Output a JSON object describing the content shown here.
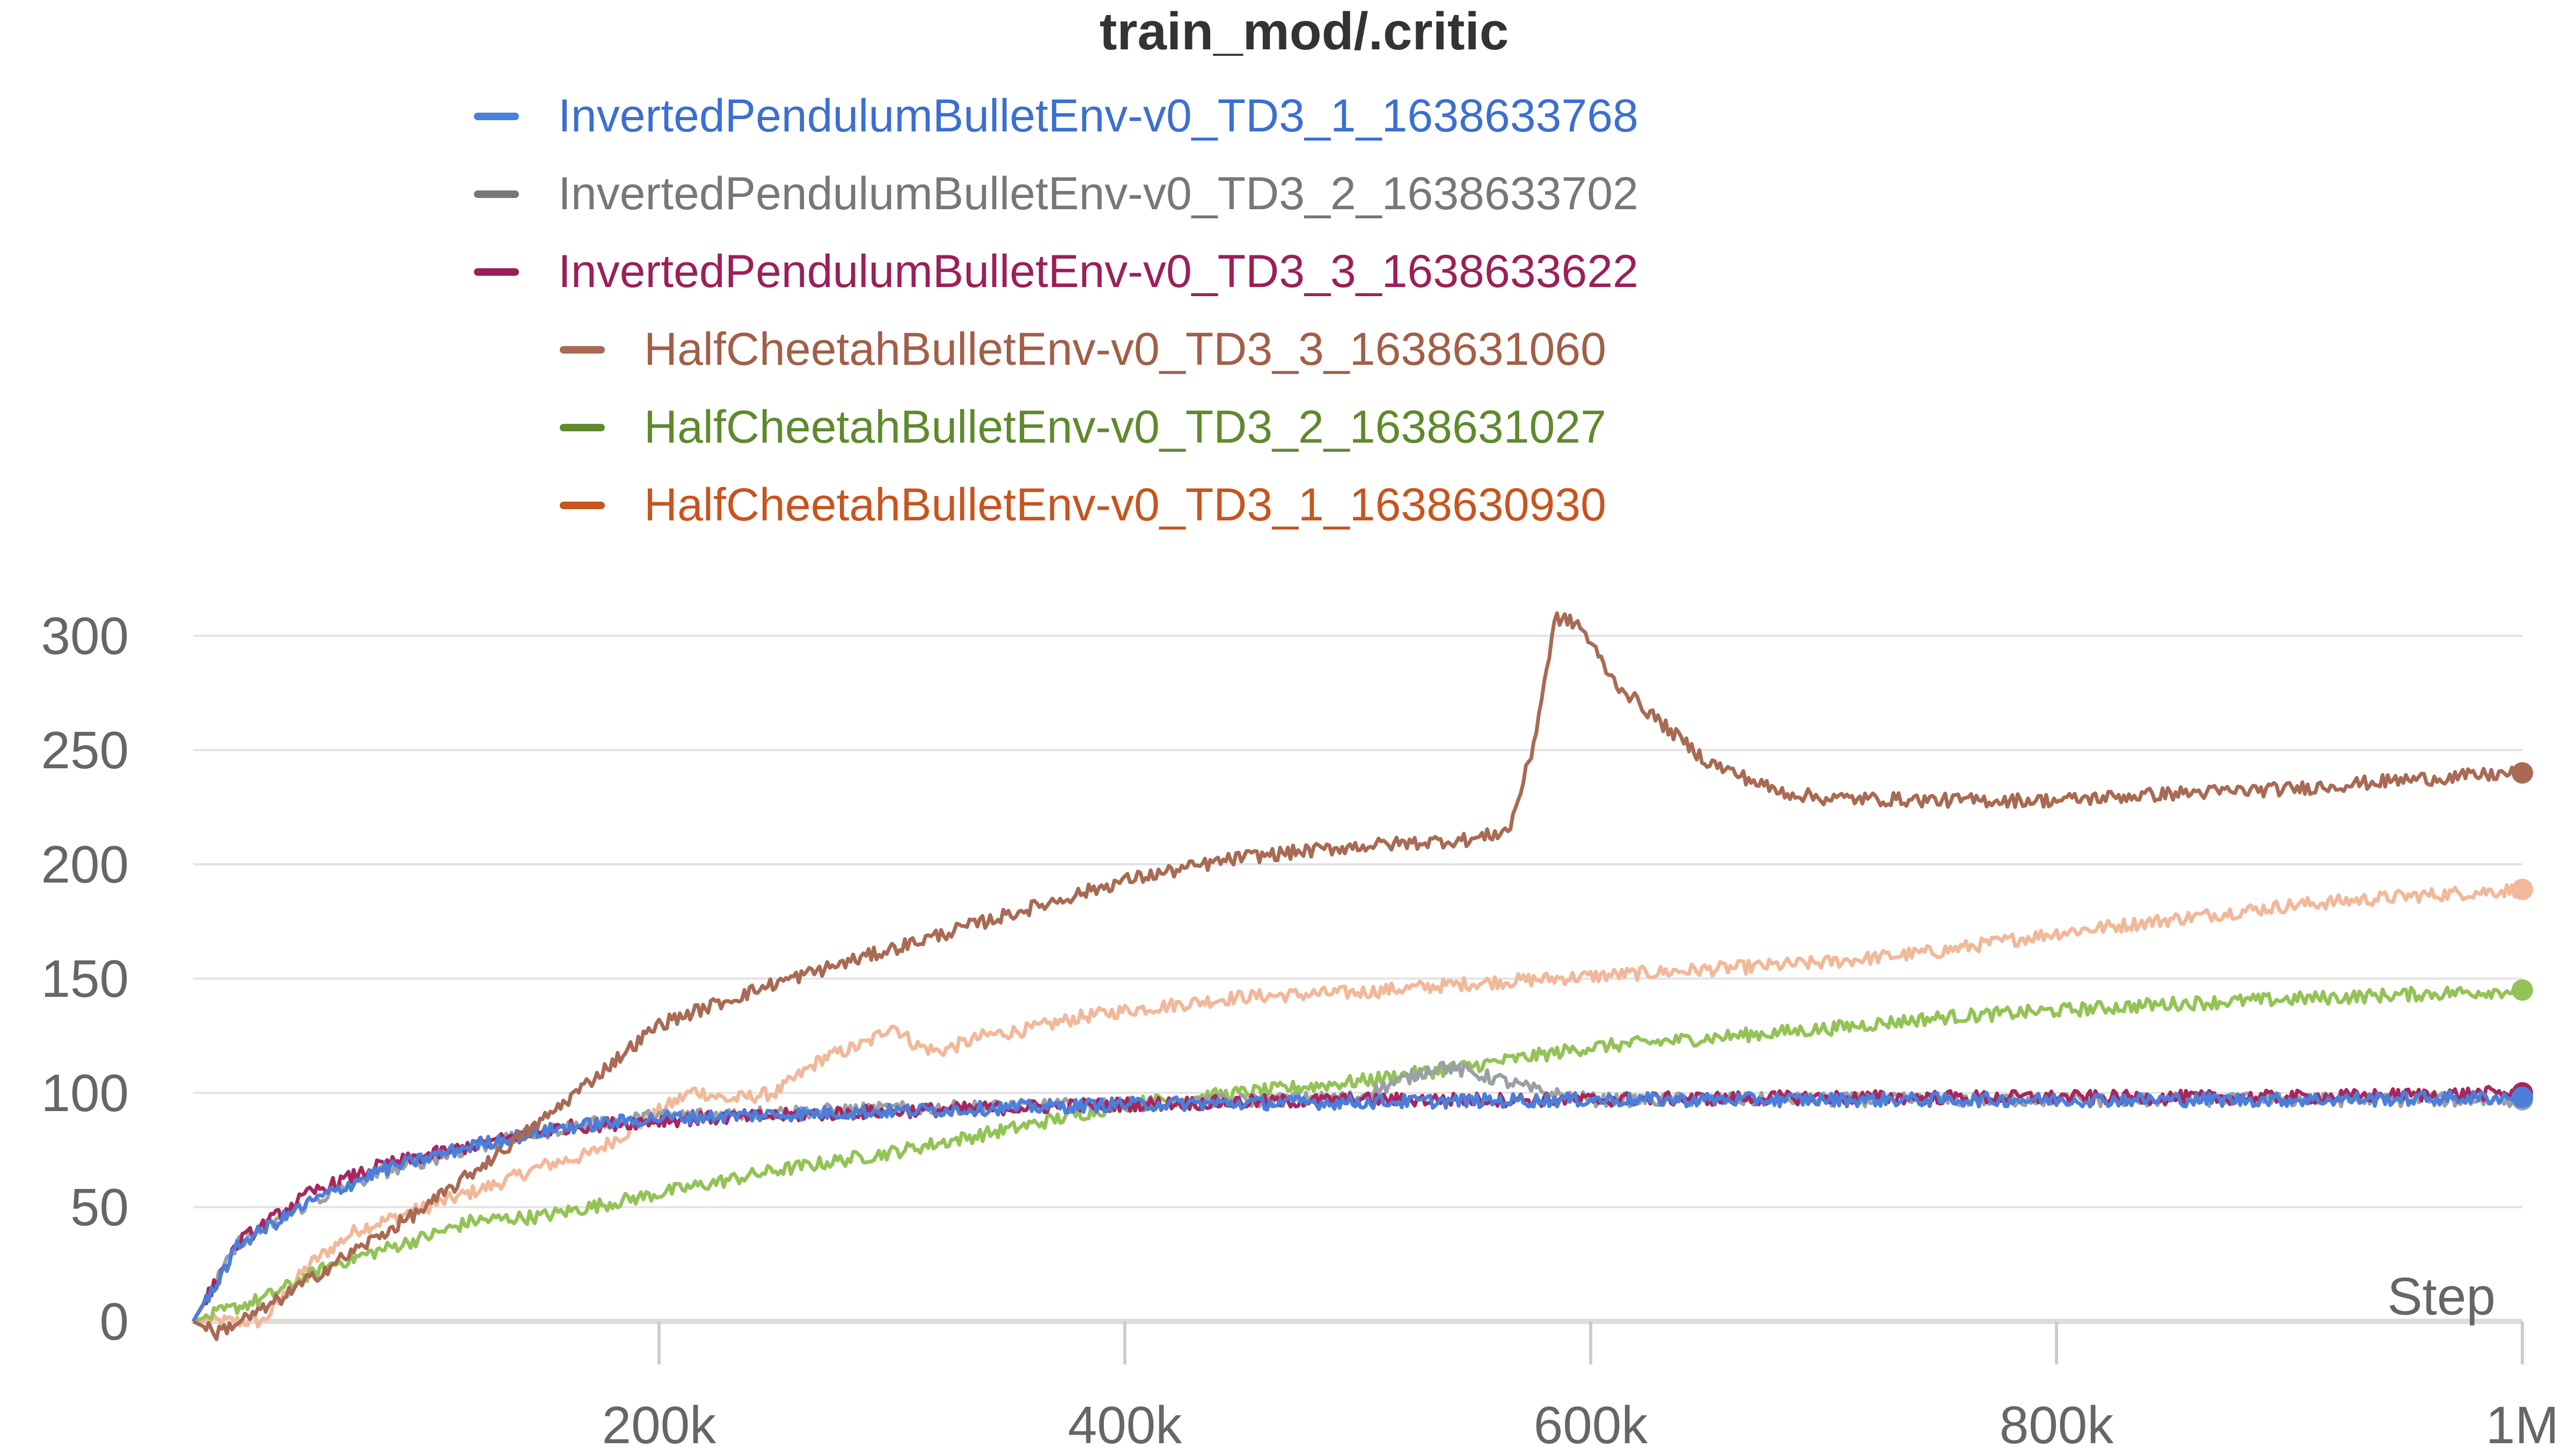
{
  "chart_data": {
    "type": "line",
    "title": "train_mod/.critic",
    "xlabel": "Step",
    "ylabel": "",
    "xlim": [
      0,
      1000000
    ],
    "ylim": [
      0,
      300
    ],
    "x_ticks": [
      200000,
      400000,
      600000,
      800000,
      1000000
    ],
    "x_tick_labels": [
      "200k",
      "400k",
      "600k",
      "800k",
      "1M"
    ],
    "y_ticks": [
      0,
      50,
      100,
      150,
      200,
      250,
      300
    ],
    "y_tick_labels": [
      "0",
      "50",
      "100",
      "150",
      "200",
      "250",
      "300"
    ],
    "grid": true,
    "legend_position": "top",
    "series": [
      {
        "name": "HalfCheetahBulletEnv-v0_TD3_1_1638630930",
        "color": "#f2b89a",
        "points": [
          [
            0,
            0
          ],
          [
            30000,
            0
          ],
          [
            50000,
            25
          ],
          [
            70000,
            40
          ],
          [
            100000,
            50
          ],
          [
            130000,
            60
          ],
          [
            150000,
            68
          ],
          [
            170000,
            73
          ],
          [
            190000,
            85
          ],
          [
            200000,
            92
          ],
          [
            215000,
            101
          ],
          [
            230000,
            97
          ],
          [
            250000,
            100
          ],
          [
            270000,
            115
          ],
          [
            290000,
            122
          ],
          [
            300000,
            130
          ],
          [
            310000,
            121
          ],
          [
            320000,
            118
          ],
          [
            340000,
            125
          ],
          [
            360000,
            128
          ],
          [
            380000,
            133
          ],
          [
            400000,
            136
          ],
          [
            450000,
            142
          ],
          [
            500000,
            144
          ],
          [
            550000,
            148
          ],
          [
            600000,
            151
          ],
          [
            650000,
            154
          ],
          [
            700000,
            157
          ],
          [
            750000,
            162
          ],
          [
            800000,
            170
          ],
          [
            850000,
            176
          ],
          [
            900000,
            182
          ],
          [
            950000,
            186
          ],
          [
            1000000,
            189
          ]
        ]
      },
      {
        "name": "HalfCheetahBulletEnv-v0_TD3_2_1638631027",
        "color": "#93c356",
        "points": [
          [
            0,
            0
          ],
          [
            30000,
            10
          ],
          [
            60000,
            25
          ],
          [
            100000,
            37
          ],
          [
            120000,
            44
          ],
          [
            150000,
            46
          ],
          [
            200000,
            56
          ],
          [
            250000,
            66
          ],
          [
            300000,
            74
          ],
          [
            350000,
            84
          ],
          [
            400000,
            95
          ],
          [
            450000,
            100
          ],
          [
            500000,
            105
          ],
          [
            550000,
            112
          ],
          [
            600000,
            120
          ],
          [
            650000,
            124
          ],
          [
            700000,
            128
          ],
          [
            750000,
            133
          ],
          [
            800000,
            136
          ],
          [
            850000,
            139
          ],
          [
            900000,
            141
          ],
          [
            950000,
            143
          ],
          [
            1000000,
            145
          ]
        ]
      },
      {
        "name": "InvertedPendulumBulletEnv-v0_TD3_2_1638633702",
        "color": "#9aa0a6",
        "points": [
          [
            0,
            0
          ],
          [
            20000,
            35
          ],
          [
            50000,
            52
          ],
          [
            80000,
            65
          ],
          [
            120000,
            76
          ],
          [
            160000,
            85
          ],
          [
            200000,
            90
          ],
          [
            300000,
            93
          ],
          [
            400000,
            95
          ],
          [
            500000,
            98
          ],
          [
            520000,
            106
          ],
          [
            535000,
            112
          ],
          [
            560000,
            106
          ],
          [
            580000,
            100
          ],
          [
            600000,
            97
          ],
          [
            700000,
            97
          ],
          [
            800000,
            97
          ],
          [
            900000,
            97
          ],
          [
            1000000,
            97
          ]
        ]
      },
      {
        "name": "InvertedPendulumBulletEnv-v0_TD3_3_1638633622",
        "color": "#a8265e",
        "points": [
          [
            0,
            0
          ],
          [
            20000,
            35
          ],
          [
            50000,
            56
          ],
          [
            80000,
            68
          ],
          [
            120000,
            77
          ],
          [
            160000,
            85
          ],
          [
            200000,
            88
          ],
          [
            300000,
            92
          ],
          [
            400000,
            95
          ],
          [
            500000,
            97
          ],
          [
            600000,
            97
          ],
          [
            700000,
            98
          ],
          [
            800000,
            98
          ],
          [
            900000,
            98
          ],
          [
            1000000,
            100
          ]
        ]
      },
      {
        "name": "InvertedPendulumBulletEnv-v0_TD3_1_1638633768",
        "color": "#4a7fdc",
        "points": [
          [
            0,
            0
          ],
          [
            20000,
            34
          ],
          [
            50000,
            52
          ],
          [
            80000,
            66
          ],
          [
            120000,
            77
          ],
          [
            160000,
            85
          ],
          [
            200000,
            89
          ],
          [
            300000,
            92
          ],
          [
            400000,
            95
          ],
          [
            500000,
            96
          ],
          [
            600000,
            97
          ],
          [
            700000,
            97
          ],
          [
            800000,
            97
          ],
          [
            900000,
            97
          ],
          [
            1000000,
            98
          ]
        ]
      },
      {
        "name": "HalfCheetahBulletEnv-v0_TD3_3_1638631060",
        "color": "#a96a53",
        "points": [
          [
            0,
            0
          ],
          [
            10000,
            -5
          ],
          [
            30000,
            5
          ],
          [
            60000,
            25
          ],
          [
            100000,
            50
          ],
          [
            150000,
            88
          ],
          [
            200000,
            130
          ],
          [
            250000,
            148
          ],
          [
            300000,
            163
          ],
          [
            350000,
            178
          ],
          [
            400000,
            193
          ],
          [
            450000,
            203
          ],
          [
            500000,
            208
          ],
          [
            550000,
            211
          ],
          [
            565000,
            215
          ],
          [
            575000,
            250
          ],
          [
            585000,
            308
          ],
          [
            595000,
            305
          ],
          [
            610000,
            280
          ],
          [
            630000,
            262
          ],
          [
            650000,
            245
          ],
          [
            680000,
            232
          ],
          [
            700000,
            229
          ],
          [
            750000,
            228
          ],
          [
            800000,
            228
          ],
          [
            850000,
            231
          ],
          [
            900000,
            233
          ],
          [
            950000,
            237
          ],
          [
            1000000,
            240
          ]
        ]
      }
    ]
  }
}
